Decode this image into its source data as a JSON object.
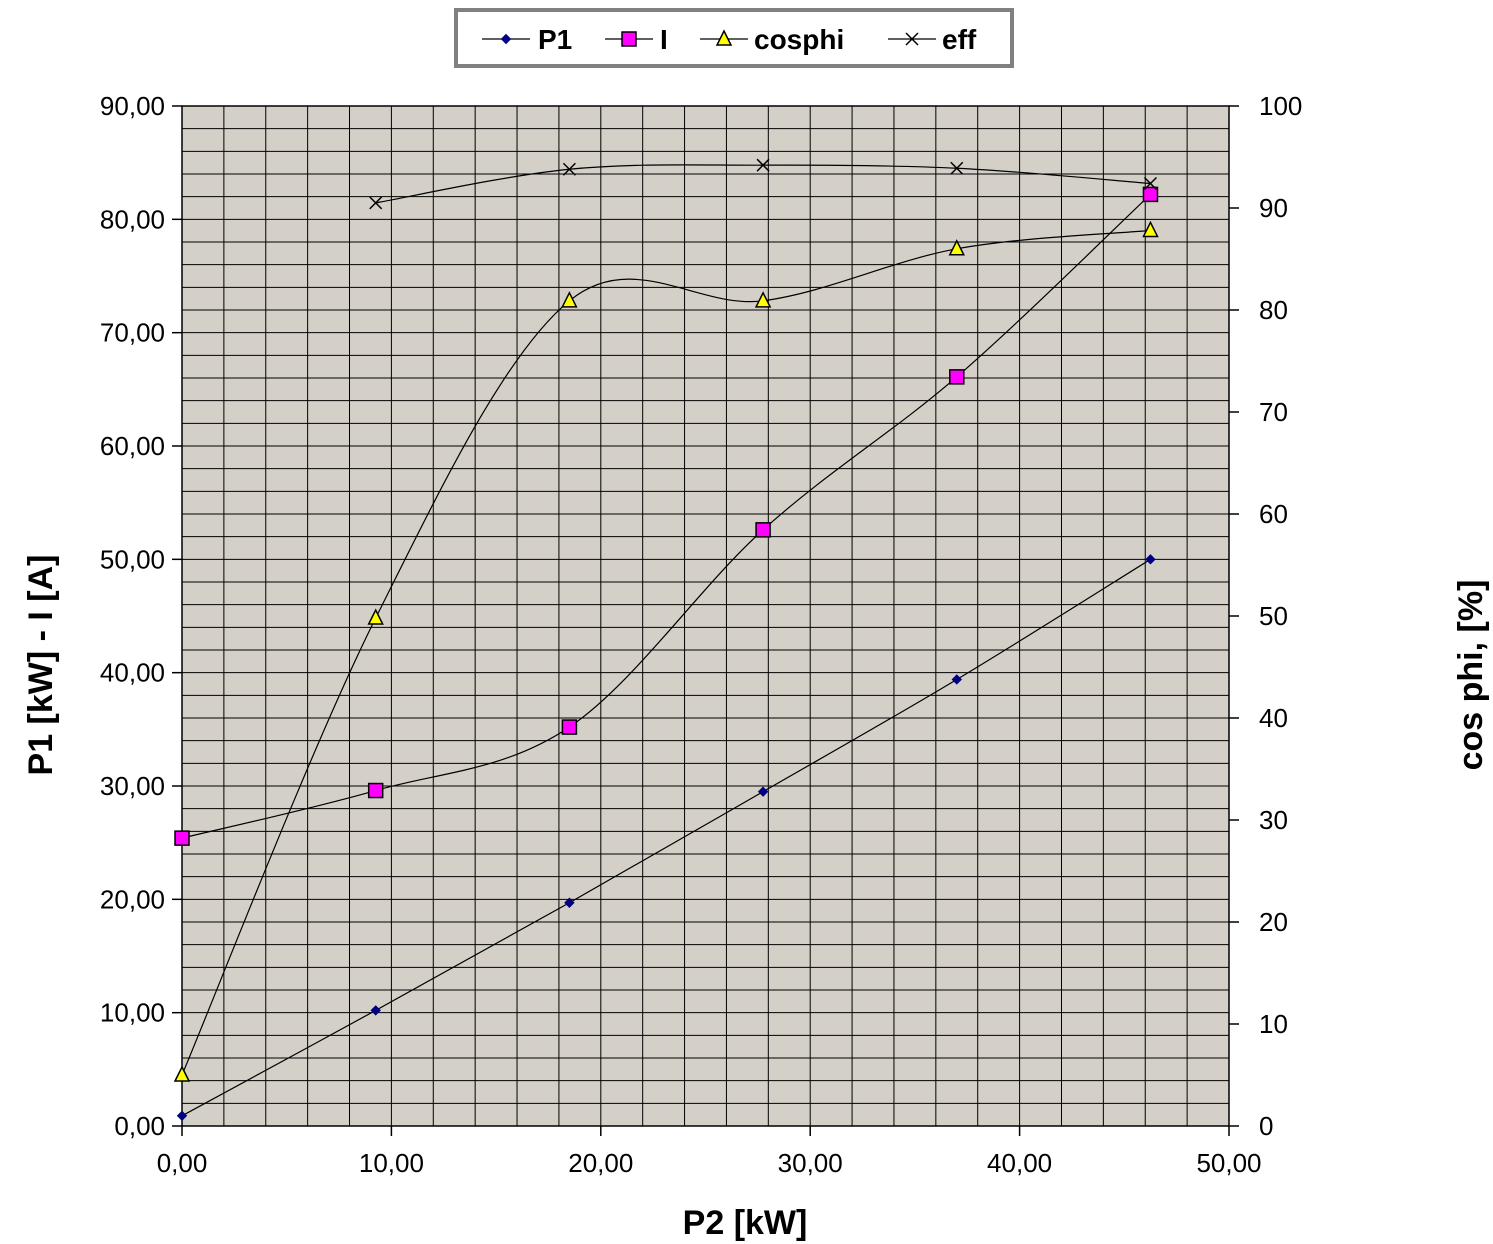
{
  "chart_data": {
    "type": "line",
    "x_axis": {
      "label": "P2 [kW]",
      "range": [
        0,
        50
      ],
      "major_step": 10,
      "minor_step": 2,
      "tick_labels": [
        "0,00",
        "10,00",
        "20,00",
        "30,00",
        "40,00",
        "50,00"
      ]
    },
    "y_axis_left": {
      "label": "P1 [kW] - I [A]",
      "range": [
        0,
        90
      ],
      "major_step": 10,
      "minor_step": 2,
      "tick_labels": [
        "0,00",
        "10,00",
        "20,00",
        "30,00",
        "40,00",
        "50,00",
        "60,00",
        "70,00",
        "80,00",
        "90,00"
      ]
    },
    "y_axis_right": {
      "label": "cos phi, [%]",
      "range": [
        0,
        100
      ],
      "major_step": 10,
      "tick_labels": [
        "0",
        "10",
        "20",
        "30",
        "40",
        "50",
        "60",
        "70",
        "80",
        "90",
        "100"
      ]
    },
    "grid": true,
    "plot_background": "#d4d0c8",
    "legend_position": "top-center",
    "series": [
      {
        "name": "P1",
        "axis": "left",
        "marker": "diamond",
        "color": "#000080",
        "points": [
          [
            0,
            0.9
          ],
          [
            9.25,
            10.2
          ],
          [
            18.5,
            19.7
          ],
          [
            27.75,
            29.5
          ],
          [
            37,
            39.4
          ],
          [
            46.25,
            50.0
          ]
        ]
      },
      {
        "name": "I",
        "axis": "left",
        "marker": "square",
        "color": "#ff00ff",
        "points": [
          [
            0,
            25.4
          ],
          [
            9.25,
            29.6
          ],
          [
            18.5,
            35.2
          ],
          [
            27.75,
            52.6
          ],
          [
            37,
            66.1
          ],
          [
            46.25,
            82.2
          ]
        ]
      },
      {
        "name": "cosphi",
        "axis": "right",
        "marker": "triangle",
        "color": "#ffff00",
        "points": [
          [
            0,
            5
          ],
          [
            9.25,
            49.8
          ],
          [
            18.5,
            80.9
          ],
          [
            27.75,
            80.9
          ],
          [
            37,
            86.0
          ],
          [
            46.25,
            87.8
          ]
        ]
      },
      {
        "name": "eff",
        "axis": "right",
        "marker": "x",
        "color": "#000000",
        "points": [
          [
            9.25,
            90.5
          ],
          [
            18.5,
            93.8
          ],
          [
            27.75,
            94.2
          ],
          [
            37,
            93.9
          ],
          [
            46.25,
            92.4
          ]
        ]
      }
    ]
  }
}
